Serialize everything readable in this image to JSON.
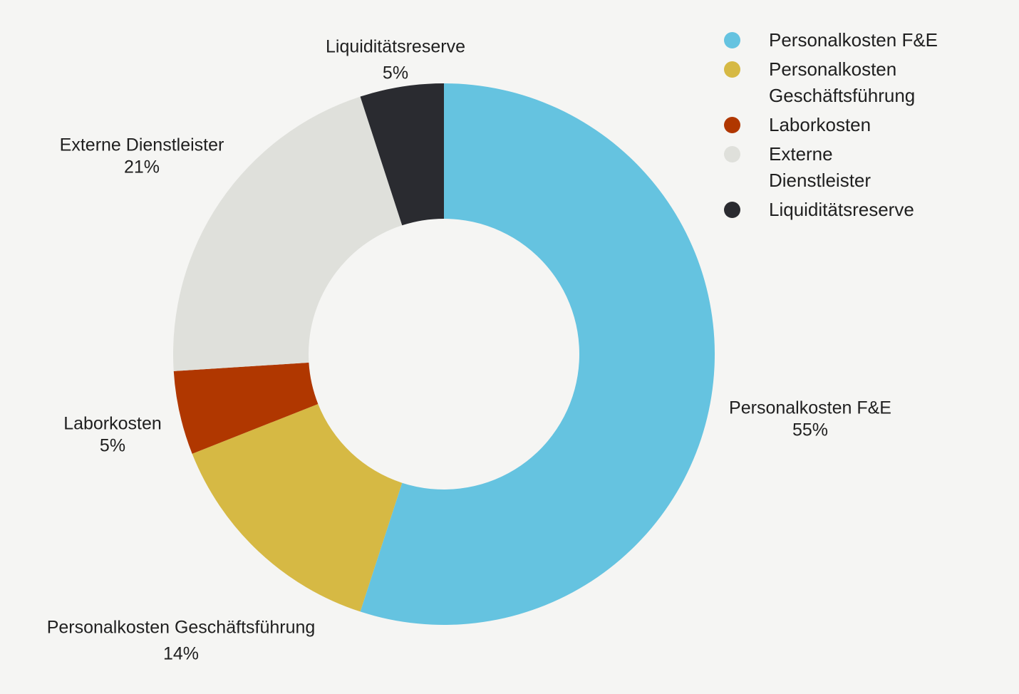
{
  "chart_data": {
    "type": "pie",
    "variant": "donut",
    "categories": [
      "Personalkosten F&E",
      "Personalkosten Geschäftsführung",
      "Laborkosten",
      "Externe Dienstleister",
      "Liquiditätsreserve"
    ],
    "values": [
      55,
      14,
      5,
      21,
      5
    ],
    "value_labels": [
      "55%",
      "14%",
      "5%",
      "21%",
      "5%"
    ],
    "colors": [
      "#65c3e0",
      "#d6b944",
      "#b03700",
      "#dfe0db",
      "#2a2b30"
    ],
    "legend_placement": "top-right",
    "legend": [
      {
        "lines": [
          "Personalkosten F&E"
        ],
        "color": "#65c3e0"
      },
      {
        "lines": [
          "Personalkosten",
          "Geschäftsführung"
        ],
        "color": "#d6b944"
      },
      {
        "lines": [
          "Laborkosten"
        ],
        "color": "#b03700"
      },
      {
        "lines": [
          "Externe",
          "Dienstleister"
        ],
        "color": "#dfe0db"
      },
      {
        "lines": [
          "Liquiditätsreserve"
        ],
        "color": "#2a2b30"
      }
    ]
  }
}
